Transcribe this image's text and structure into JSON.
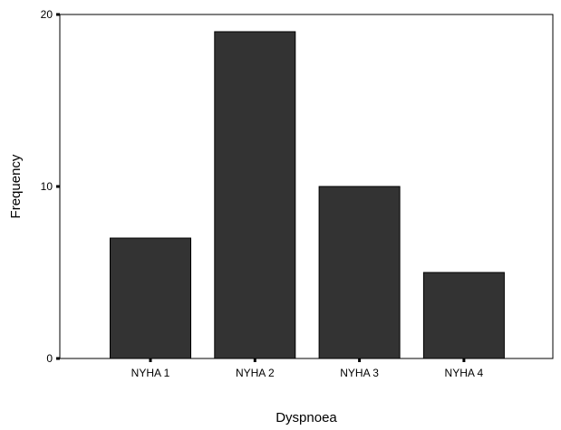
{
  "chart_data": {
    "type": "bar",
    "title": "",
    "xlabel": "Dyspnoea",
    "ylabel": "Frequency",
    "categories": [
      "NYHA 1",
      "NYHA 2",
      "NYHA 3",
      "NYHA 4"
    ],
    "values": [
      7,
      19,
      10,
      5
    ],
    "ylim": [
      0,
      20
    ],
    "yticks": [
      0,
      10,
      20
    ],
    "grid": false,
    "legend": "none",
    "bar_color": "#333333",
    "bar_edge_color": "#000000"
  }
}
